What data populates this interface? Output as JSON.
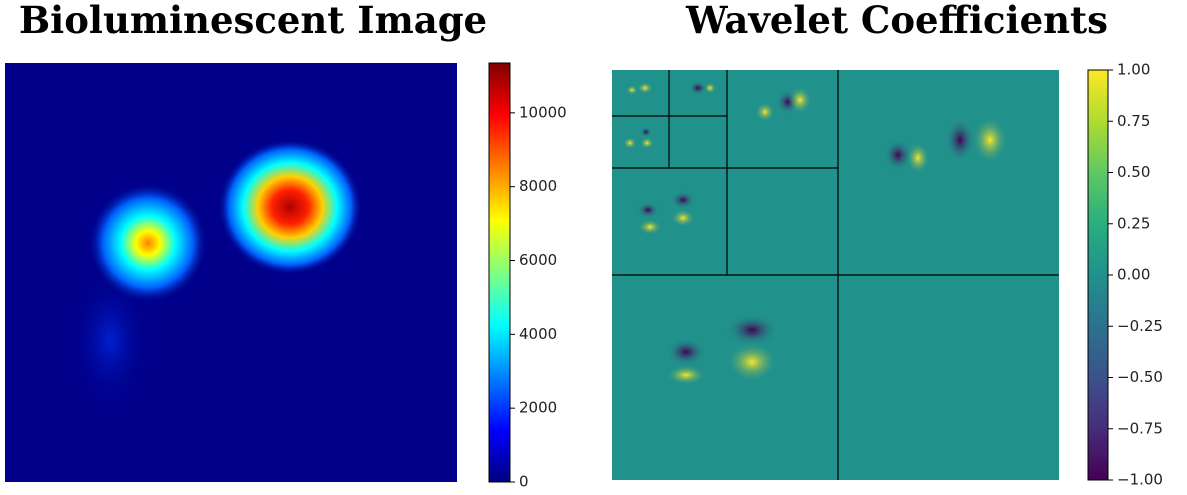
{
  "chart_data": [
    {
      "type": "image",
      "title": "Bioluminescent Image",
      "colormap": "jet",
      "ylim": [
        0,
        11350
      ],
      "yticks": [
        0,
        2000,
        4000,
        6000,
        8000,
        10000
      ]
    },
    {
      "type": "image",
      "title": "Wavelet Coefficients",
      "colormap": "viridis",
      "ylim": [
        -1,
        1
      ],
      "yticks": [
        {
          "value": -1,
          "label": "−1.00"
        },
        {
          "value": -0.75,
          "label": "−0.75"
        },
        {
          "value": -0.5,
          "label": "−0.50"
        },
        {
          "value": -0.25,
          "label": "−0.25"
        },
        {
          "value": 0,
          "label": "0.00"
        },
        {
          "value": 0.25,
          "label": "0.25"
        },
        {
          "value": 0.5,
          "label": "0.50"
        },
        {
          "value": 0.75,
          "label": "0.75"
        },
        {
          "value": 1,
          "label": "1.00"
        }
      ]
    }
  ]
}
